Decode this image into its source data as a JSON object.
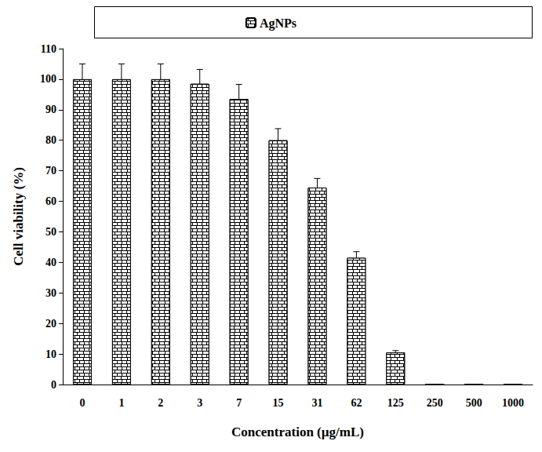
{
  "chart_data": {
    "type": "bar",
    "xlabel": "Concentration (µg/mL)",
    "ylabel": "Cell viability (%)",
    "categories": [
      "0",
      "1",
      "2",
      "3",
      "7",
      "15",
      "31",
      "62",
      "125",
      "250",
      "500",
      "1000"
    ],
    "series": [
      {
        "name": "AgNPs",
        "color": "#000000",
        "values": [
          100,
          100,
          100,
          98.5,
          93.5,
          80,
          64.5,
          41.5,
          10.5,
          0,
          0,
          0
        ],
        "errors": [
          5,
          5,
          5,
          4.7,
          4.8,
          3.8,
          3,
          2,
          0.6,
          0,
          0,
          0
        ]
      }
    ],
    "ylim": [
      0,
      110
    ],
    "yticks": [
      0,
      10,
      20,
      30,
      40,
      50,
      60,
      70,
      80,
      90,
      100,
      110
    ],
    "grid": false,
    "legend": "top"
  }
}
